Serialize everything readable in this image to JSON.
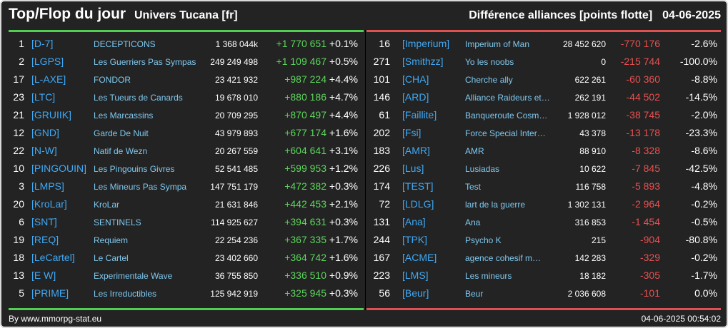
{
  "header": {
    "title": "Top/Flop du jour",
    "subtitle": "Univers Tucana [fr]",
    "section": "Différence alliances [points flotte]",
    "date": "04-06-2025"
  },
  "colors": {
    "background": "#232323",
    "top_divider": "#50d050",
    "flop_divider": "#e05050",
    "gain": "#5cd65c",
    "loss": "#e85050",
    "tag": "#3fa9f5",
    "name": "#7fc9f0"
  },
  "top": [
    {
      "rank": "1",
      "tag": "[D-7]",
      "name": "DECEPTICONS",
      "points": "1 368 044k",
      "delta": "+1 770 651",
      "pct": "+0.1%"
    },
    {
      "rank": "2",
      "tag": "[LGPS]",
      "name": "Les Guerriers Pas Sympas",
      "points": "249 249 498",
      "delta": "+1 109 467",
      "pct": "+0.5%"
    },
    {
      "rank": "17",
      "tag": "[L-AXE]",
      "name": "FONDOR",
      "points": "23 421 932",
      "delta": "+987 224",
      "pct": "+4.4%"
    },
    {
      "rank": "23",
      "tag": "[LTC]",
      "name": "Les Tueurs de Canards",
      "points": "19 678 010",
      "delta": "+880 186",
      "pct": "+4.7%"
    },
    {
      "rank": "21",
      "tag": "[GRUIIK]",
      "name": "Les Marcassins",
      "points": "20 709 295",
      "delta": "+870 497",
      "pct": "+4.4%"
    },
    {
      "rank": "12",
      "tag": "[GND]",
      "name": "Garde De Nuit",
      "points": "43 979 893",
      "delta": "+677 174",
      "pct": "+1.6%"
    },
    {
      "rank": "22",
      "tag": "[N-W]",
      "name": "Natif de Wezn",
      "points": "20 267 559",
      "delta": "+604 641",
      "pct": "+3.1%"
    },
    {
      "rank": "10",
      "tag": "[PINGOUIN]",
      "name": "Les Pingouins Givres",
      "points": "52 541 485",
      "delta": "+599 953",
      "pct": "+1.2%"
    },
    {
      "rank": "3",
      "tag": "[LMPS]",
      "name": "Les Mineurs Pas Sympa",
      "points": "147 751 179",
      "delta": "+472 382",
      "pct": "+0.3%"
    },
    {
      "rank": "20",
      "tag": "[KroLar]",
      "name": "KroLar",
      "points": "21 631 846",
      "delta": "+442 453",
      "pct": "+2.1%"
    },
    {
      "rank": "6",
      "tag": "[SNT]",
      "name": "SENTINELS",
      "points": "114 925 627",
      "delta": "+394 631",
      "pct": "+0.3%"
    },
    {
      "rank": "19",
      "tag": "[REQ]",
      "name": "Requiem",
      "points": "22 254 236",
      "delta": "+367 335",
      "pct": "+1.7%"
    },
    {
      "rank": "18",
      "tag": "[LeCartel]",
      "name": "Le Cartel",
      "points": "23 402 660",
      "delta": "+364 742",
      "pct": "+1.6%"
    },
    {
      "rank": "13",
      "tag": "[E W]",
      "name": "Experimentale Wave",
      "points": "36 755 850",
      "delta": "+336 510",
      "pct": "+0.9%"
    },
    {
      "rank": "5",
      "tag": "[PRIME]",
      "name": "Les Irreductibles",
      "points": "125 942 919",
      "delta": "+325 945",
      "pct": "+0.3%"
    }
  ],
  "flop": [
    {
      "rank": "16",
      "tag": "[Imperium]",
      "name": "Imperium of Man",
      "points": "28 452 620",
      "delta": "-770 176",
      "pct": "-2.6%"
    },
    {
      "rank": "271",
      "tag": "[Smithzz]",
      "name": "Yo les noobs",
      "points": "0",
      "delta": "-215 744",
      "pct": "-100.0%"
    },
    {
      "rank": "101",
      "tag": "[CHA]",
      "name": "Cherche ally",
      "points": "622 261",
      "delta": "-60 360",
      "pct": "-8.8%"
    },
    {
      "rank": "146",
      "tag": "[ARD]",
      "name": "Alliance Raideurs et…",
      "points": "262 191",
      "delta": "-44 502",
      "pct": "-14.5%"
    },
    {
      "rank": "61",
      "tag": "[Faillite]",
      "name": "Banqueroute Cosm…",
      "points": "1 928 012",
      "delta": "-38 745",
      "pct": "-2.0%"
    },
    {
      "rank": "202",
      "tag": "[Fsi]",
      "name": "Force Special Inter…",
      "points": "43 378",
      "delta": "-13 178",
      "pct": "-23.3%"
    },
    {
      "rank": "183",
      "tag": "[AMR]",
      "name": "AMR",
      "points": "88 910",
      "delta": "-8 328",
      "pct": "-8.6%"
    },
    {
      "rank": "226",
      "tag": "[Lus]",
      "name": "Lusiadas",
      "points": "10 622",
      "delta": "-7 845",
      "pct": "-42.5%"
    },
    {
      "rank": "174",
      "tag": "[TEST]",
      "name": "Test",
      "points": "116 758",
      "delta": "-5 893",
      "pct": "-4.8%"
    },
    {
      "rank": "72",
      "tag": "[LDLG]",
      "name": "lart de la guerre",
      "points": "1 302 131",
      "delta": "-2 964",
      "pct": "-0.2%"
    },
    {
      "rank": "131",
      "tag": "[Ana]",
      "name": "Ana",
      "points": "316 853",
      "delta": "-1 454",
      "pct": "-0.5%"
    },
    {
      "rank": "244",
      "tag": "[TPK]",
      "name": "Psycho K",
      "points": "215",
      "delta": "-904",
      "pct": "-80.8%"
    },
    {
      "rank": "167",
      "tag": "[ACME]",
      "name": "agence cohesif m…",
      "points": "142 283",
      "delta": "-329",
      "pct": "-0.2%"
    },
    {
      "rank": "223",
      "tag": "[LMS]",
      "name": "Les mineurs",
      "points": "18 182",
      "delta": "-305",
      "pct": "-1.7%"
    },
    {
      "rank": "56",
      "tag": "[Beur]",
      "name": "Beur",
      "points": "2 036 608",
      "delta": "-101",
      "pct": "0.0%"
    }
  ],
  "footer": {
    "source": "By www.mmorpg-stat.eu",
    "timestamp": "04-06-2025 00:54:02"
  }
}
